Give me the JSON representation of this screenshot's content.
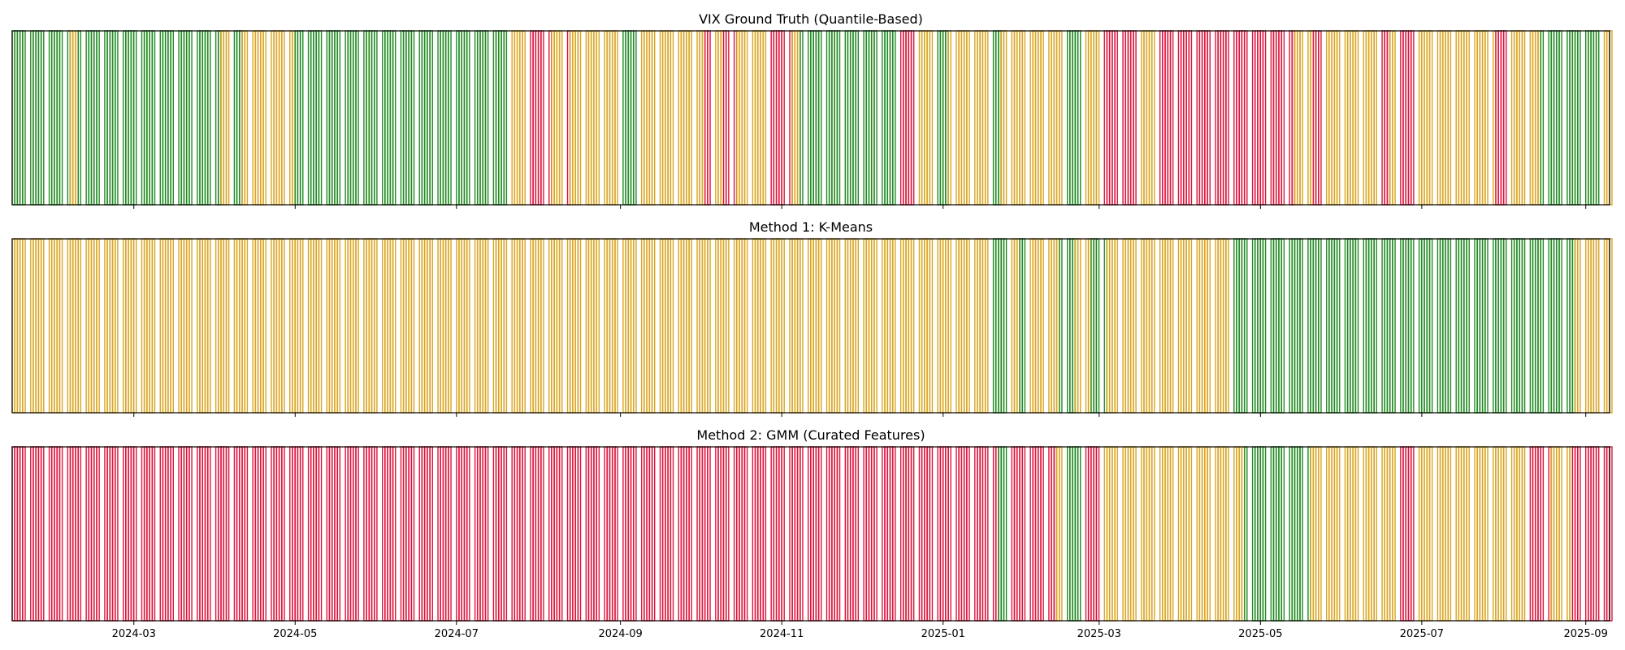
{
  "colors": {
    "low": "#228B22",
    "medium": "#DAA520",
    "high": "#DC143C",
    "frame": "#000000"
  },
  "chart_data": [
    {
      "type": "bar",
      "title": "VIX Ground Truth (Quantile-Based)",
      "x_range": [
        "2024-01-15",
        "2025-09-10"
      ],
      "segments": [
        [
          "2024-01-15",
          "2024-01-21",
          "low"
        ],
        [
          "2024-01-22",
          "2024-02-05",
          "low"
        ],
        [
          "2024-02-06",
          "2024-02-08",
          "medium"
        ],
        [
          "2024-02-09",
          "2024-04-02",
          "low"
        ],
        [
          "2024-04-03",
          "2024-04-06",
          "medium"
        ],
        [
          "2024-04-07",
          "2024-04-10",
          "low"
        ],
        [
          "2024-04-11",
          "2024-04-30",
          "medium"
        ],
        [
          "2024-05-01",
          "2024-07-21",
          "low"
        ],
        [
          "2024-07-22",
          "2024-07-28",
          "medium"
        ],
        [
          "2024-07-29",
          "2024-08-05",
          "high"
        ],
        [
          "2024-08-06",
          "2024-08-10",
          "medium"
        ],
        [
          "2024-08-11",
          "2024-08-12",
          "high"
        ],
        [
          "2024-08-13",
          "2024-08-16",
          "medium"
        ],
        [
          "2024-08-17",
          "2024-08-31",
          "medium"
        ],
        [
          "2024-09-01",
          "2024-09-06",
          "low"
        ],
        [
          "2024-09-07",
          "2024-10-02",
          "medium"
        ],
        [
          "2024-10-03",
          "2024-10-06",
          "high"
        ],
        [
          "2024-10-07",
          "2024-10-09",
          "medium"
        ],
        [
          "2024-10-10",
          "2024-10-14",
          "high"
        ],
        [
          "2024-10-15",
          "2024-10-26",
          "medium"
        ],
        [
          "2024-10-27",
          "2024-11-04",
          "high"
        ],
        [
          "2024-11-05",
          "2024-11-07",
          "medium"
        ],
        [
          "2024-11-08",
          "2024-12-15",
          "low"
        ],
        [
          "2024-12-16",
          "2024-12-21",
          "high"
        ],
        [
          "2024-12-22",
          "2024-12-28",
          "medium"
        ],
        [
          "2024-12-29",
          "2025-01-02",
          "low"
        ],
        [
          "2025-01-03",
          "2025-01-17",
          "medium"
        ],
        [
          "2025-01-18",
          "2025-01-22",
          "low"
        ],
        [
          "2025-01-23",
          "2025-02-15",
          "medium"
        ],
        [
          "2025-02-16",
          "2025-02-22",
          "low"
        ],
        [
          "2025-02-23",
          "2025-02-28",
          "medium"
        ],
        [
          "2025-03-01",
          "2025-03-06",
          "high"
        ],
        [
          "2025-03-07",
          "2025-03-15",
          "high"
        ],
        [
          "2025-03-16",
          "2025-03-23",
          "medium"
        ],
        [
          "2025-03-24",
          "2025-04-25",
          "high"
        ],
        [
          "2025-04-26",
          "2025-05-13",
          "high"
        ],
        [
          "2025-05-14",
          "2025-05-20",
          "medium"
        ],
        [
          "2025-05-21",
          "2025-05-24",
          "high"
        ],
        [
          "2025-05-25",
          "2025-06-15",
          "medium"
        ],
        [
          "2025-06-16",
          "2025-06-18",
          "high"
        ],
        [
          "2025-06-19",
          "2025-06-22",
          "medium"
        ],
        [
          "2025-06-23",
          "2025-06-27",
          "high"
        ],
        [
          "2025-06-28",
          "2025-07-28",
          "medium"
        ],
        [
          "2025-07-29",
          "2025-08-02",
          "high"
        ],
        [
          "2025-08-03",
          "2025-08-14",
          "medium"
        ],
        [
          "2025-08-15",
          "2025-09-06",
          "low"
        ],
        [
          "2025-09-07",
          "2025-09-10",
          "medium"
        ]
      ]
    },
    {
      "type": "bar",
      "title": "Method 1: K-Means",
      "x_range": [
        "2024-01-15",
        "2025-09-10"
      ],
      "segments": [
        [
          "2024-01-15",
          "2025-01-19",
          "medium"
        ],
        [
          "2025-01-20",
          "2025-01-24",
          "low"
        ],
        [
          "2025-01-25",
          "2025-01-29",
          "medium"
        ],
        [
          "2025-01-30",
          "2025-02-02",
          "low"
        ],
        [
          "2025-02-03",
          "2025-02-13",
          "medium"
        ],
        [
          "2025-02-14",
          "2025-02-19",
          "low"
        ],
        [
          "2025-02-20",
          "2025-02-25",
          "medium"
        ],
        [
          "2025-02-26",
          "2025-03-03",
          "low"
        ],
        [
          "2025-03-04",
          "2025-04-20",
          "medium"
        ],
        [
          "2025-04-21",
          "2025-08-27",
          "low"
        ],
        [
          "2025-08-28",
          "2025-09-10",
          "medium"
        ]
      ]
    },
    {
      "type": "bar",
      "title": "Method 2: GMM (Curated Features)",
      "x_range": [
        "2024-01-15",
        "2025-09-10"
      ],
      "segments": [
        [
          "2024-01-15",
          "2025-01-21",
          "high"
        ],
        [
          "2025-01-22",
          "2025-01-25",
          "low"
        ],
        [
          "2025-01-26",
          "2025-02-12",
          "high"
        ],
        [
          "2025-02-13",
          "2025-02-16",
          "medium"
        ],
        [
          "2025-02-17",
          "2025-02-23",
          "low"
        ],
        [
          "2025-02-24",
          "2025-02-28",
          "high"
        ],
        [
          "2025-03-01",
          "2025-04-24",
          "medium"
        ],
        [
          "2025-04-25",
          "2025-05-19",
          "low"
        ],
        [
          "2025-05-20",
          "2025-06-20",
          "medium"
        ],
        [
          "2025-06-21",
          "2025-06-28",
          "high"
        ],
        [
          "2025-06-29",
          "2025-08-09",
          "medium"
        ],
        [
          "2025-08-10",
          "2025-08-18",
          "high"
        ],
        [
          "2025-08-19",
          "2025-08-26",
          "medium"
        ],
        [
          "2025-08-27",
          "2025-09-10",
          "high"
        ]
      ]
    }
  ],
  "x_axis": {
    "tick_labels": [
      "2024-03",
      "2024-05",
      "2024-07",
      "2024-09",
      "2024-11",
      "2025-01",
      "2025-03",
      "2025-05",
      "2025-07",
      "2025-09"
    ],
    "tick_dates": [
      "2024-03-01",
      "2024-05-01",
      "2024-07-01",
      "2024-09-01",
      "2024-11-01",
      "2025-01-01",
      "2025-03-01",
      "2025-05-01",
      "2025-07-01",
      "2025-09-01"
    ]
  }
}
